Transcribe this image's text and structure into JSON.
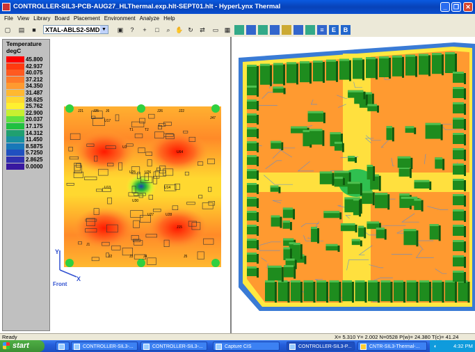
{
  "window": {
    "title": "CONTROLLER-SIL3-PCB-AUG27_HLThermal.exp.hlt-SEPT01.hlt - HyperLynx Thermal"
  },
  "menu": [
    "File",
    "View",
    "Library",
    "Board",
    "Placement",
    "Environment",
    "Analyze",
    "Help"
  ],
  "toolbar": {
    "component_select": "XTAL-ABLS2-SMD"
  },
  "legend": {
    "title1": "Temperature",
    "title2": "degC",
    "entries": [
      {
        "value": "45.800",
        "color": "#ff0000"
      },
      {
        "value": "42.937",
        "color": "#ff3a10"
      },
      {
        "value": "40.075",
        "color": "#ff5a20"
      },
      {
        "value": "37.212",
        "color": "#ff7a28"
      },
      {
        "value": "34.350",
        "color": "#ff9a30"
      },
      {
        "value": "31.487",
        "color": "#ffb830"
      },
      {
        "value": "28.625",
        "color": "#ffd830"
      },
      {
        "value": "25.762",
        "color": "#fff030"
      },
      {
        "value": "22.900",
        "color": "#c8f030"
      },
      {
        "value": "20.037",
        "color": "#60e040"
      },
      {
        "value": "17.175",
        "color": "#20c040"
      },
      {
        "value": "14.312",
        "color": "#20a070"
      },
      {
        "value": "11.450",
        "color": "#1890a0"
      },
      {
        "value": "8.5875",
        "color": "#1878b8"
      },
      {
        "value": "5.7250",
        "color": "#2050c0"
      },
      {
        "value": "2.8625",
        "color": "#3030b0"
      },
      {
        "value": "0.0000",
        "color": "#3818a0"
      }
    ]
  },
  "axes": {
    "y": "Y",
    "x": "X",
    "view": "Front"
  },
  "board_labels": [
    "J21",
    "J25",
    "J6",
    "J26",
    "J22",
    "J47",
    "U17",
    "T1",
    "T2",
    "U64",
    "U3",
    "U25",
    "U26",
    "U13",
    "U14",
    "U30",
    "U27",
    "U28",
    "J1",
    "J2",
    "J3",
    "J4",
    "J5",
    "J15"
  ],
  "status": {
    "left": "Ready",
    "readout": "X=  5.310  Y=   2.002  N=0528  P(w)= 24.380  T(c)= 41.24"
  },
  "taskbar": {
    "start": "start",
    "tasks": [
      "CONTROLLER-SIL3-...",
      "CONTROLLER-SIL3-...",
      "Capture CIS",
      "CONTROLLER-SIL3-P...",
      "CNTR-SIL3-Thermal-..."
    ],
    "clock": "4:32 PM"
  },
  "colors": {
    "title_bar": "#0842b8",
    "hot": "#ff0000",
    "cold": "#3818a0",
    "component": "#1e8c1e"
  }
}
